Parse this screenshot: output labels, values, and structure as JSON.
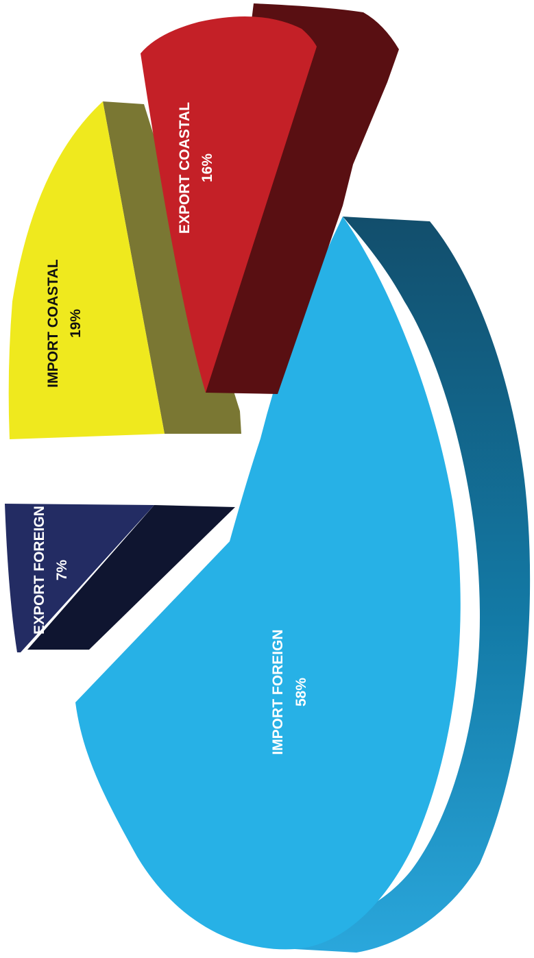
{
  "chart_data": {
    "type": "pie",
    "title": "",
    "slices": [
      {
        "label": "IMPORT FOREIGN",
        "pct_label": "58%",
        "value": 58,
        "color": "#27b1e6",
        "side_color": "#13567a",
        "label_color": "#ffffff"
      },
      {
        "label": "EXPORT FOREIGN",
        "pct_label": "7%",
        "value": 7,
        "color": "#232c63",
        "side_color": "#0f1530",
        "label_color": "#ffffff"
      },
      {
        "label": "IMPORT COASTAL",
        "pct_label": "19%",
        "value": 19,
        "color": "#efe91e",
        "side_color": "#7a7733",
        "label_color": "#111111"
      },
      {
        "label": "EXPORT COASTAL",
        "pct_label": "16%",
        "value": 16,
        "color": "#c42027",
        "side_color": "#590f12",
        "label_color": "#ffffff"
      }
    ]
  }
}
